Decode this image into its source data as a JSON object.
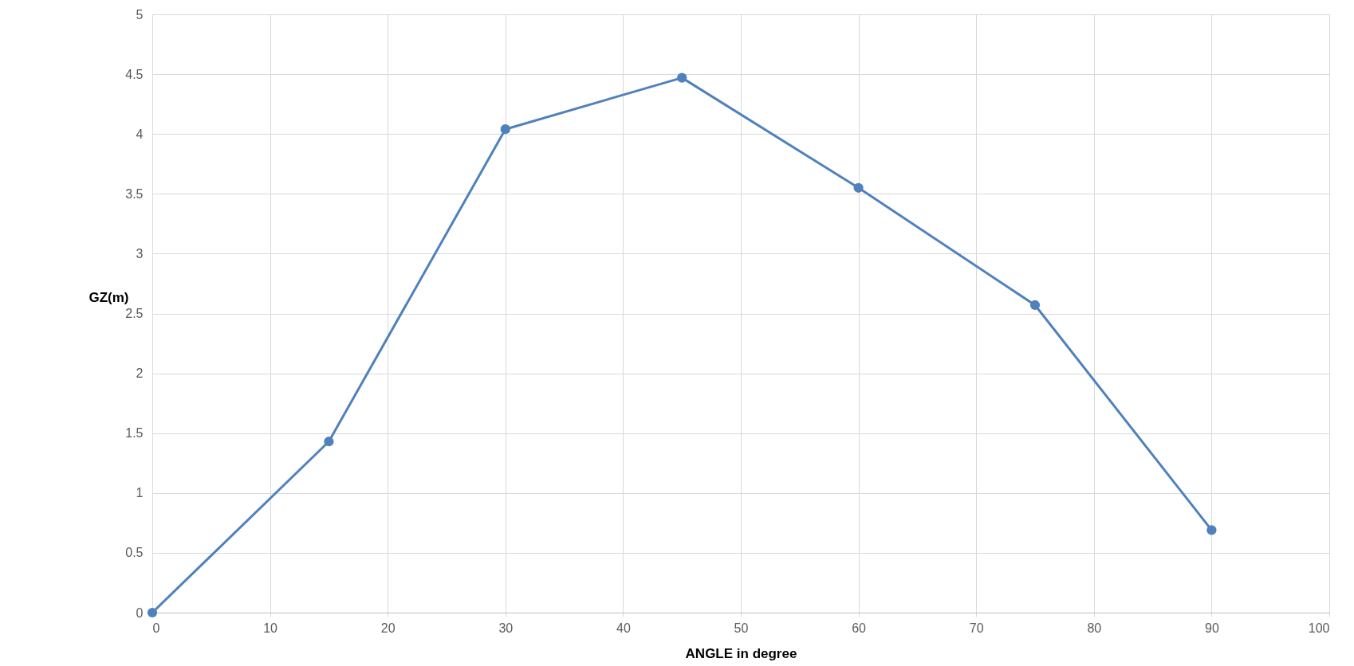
{
  "chart_data": {
    "type": "line",
    "xlabel": "ANGLE in degree",
    "ylabel": "GZ(m)",
    "x": [
      0,
      15,
      30,
      45,
      60,
      75,
      90
    ],
    "series": [
      {
        "color": "#4f81bd",
        "values": [
          0,
          1.43,
          4.04,
          4.47,
          3.55,
          2.57,
          0.69
        ]
      }
    ],
    "xlim": [
      0,
      100
    ],
    "xticks": [
      0,
      10,
      20,
      30,
      40,
      50,
      60,
      70,
      80,
      90,
      100
    ],
    "ylim": [
      0,
      5
    ],
    "yticks": [
      0,
      0.5,
      1,
      1.5,
      2,
      2.5,
      3,
      3.5,
      4,
      4.5,
      5
    ],
    "grid": true,
    "marker": "circle",
    "line_style": "solid"
  }
}
